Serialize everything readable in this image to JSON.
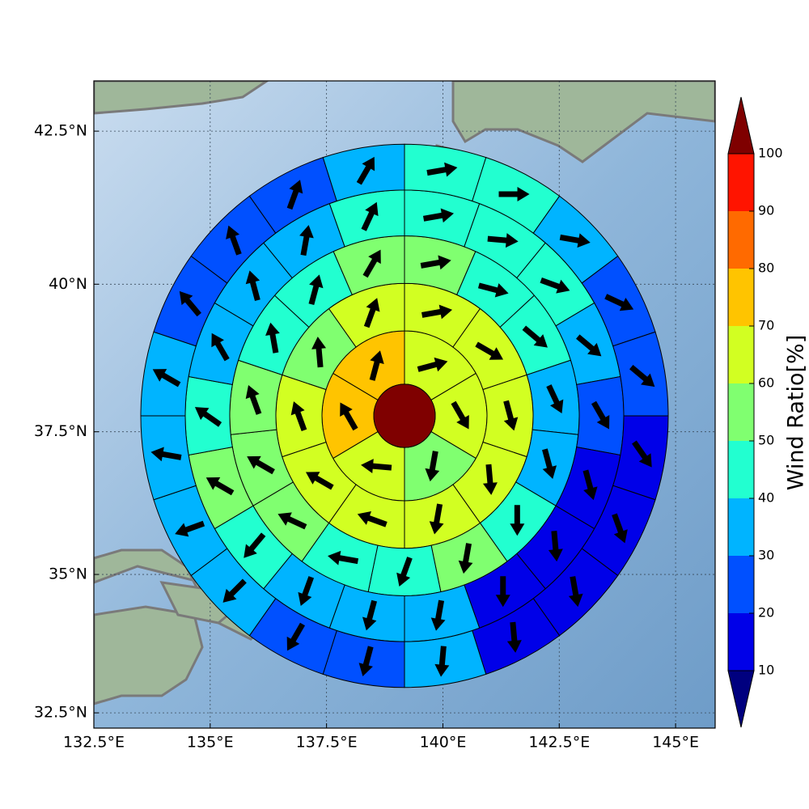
{
  "chart_data": {
    "type": "polar-sector-map",
    "projection": "mercator",
    "xlim": [
      132.5,
      145.85
    ],
    "ylim": [
      32.22,
      43.3
    ],
    "xticks": [
      {
        "value": 132.5,
        "label": "132.5°E"
      },
      {
        "value": 135,
        "label": "135°E"
      },
      {
        "value": 137.5,
        "label": "137.5°E"
      },
      {
        "value": 140,
        "label": "140°E"
      },
      {
        "value": 142.5,
        "label": "142.5°E"
      },
      {
        "value": 145,
        "label": "145°E"
      }
    ],
    "yticks": [
      {
        "value": 32.5,
        "label": "32.5°N"
      },
      {
        "value": 35,
        "label": "35°N"
      },
      {
        "value": 37.5,
        "label": "37.5°N"
      },
      {
        "value": 40,
        "label": "40°N"
      },
      {
        "value": 42.5,
        "label": "42.5°N"
      }
    ],
    "grid": true,
    "center_value": 105,
    "rings": [
      {
        "values": [
          65,
          65,
          55,
          65,
          75,
          75
        ],
        "directions": [
          75,
          150,
          190,
          275,
          330,
          15
        ]
      },
      {
        "values": [
          65,
          65,
          65,
          65,
          65,
          65,
          65,
          65,
          55,
          65
        ],
        "directions": [
          80,
          120,
          165,
          175,
          190,
          290,
          300,
          340,
          355,
          20
        ]
      },
      {
        "values": [
          55,
          45,
          45,
          35,
          35,
          45,
          55,
          45,
          45,
          55,
          55,
          55,
          45,
          45,
          55
        ],
        "directions": [
          80,
          105,
          130,
          155,
          165,
          180,
          190,
          200,
          280,
          295,
          300,
          340,
          350,
          15,
          30
        ]
      },
      {
        "values": [
          45,
          45,
          45,
          35,
          25,
          15,
          15,
          15,
          35,
          35,
          35,
          45,
          55,
          45,
          35,
          35,
          35,
          45
        ],
        "directions": [
          80,
          95,
          110,
          130,
          150,
          165,
          175,
          180,
          190,
          195,
          200,
          220,
          300,
          305,
          330,
          345,
          10,
          25
        ]
      },
      {
        "values": [
          45,
          45,
          35,
          25,
          25,
          15,
          15,
          15,
          15,
          35,
          25,
          25,
          35,
          35,
          35,
          35,
          25,
          25,
          25,
          35
        ],
        "directions": [
          80,
          90,
          100,
          115,
          130,
          145,
          160,
          170,
          175,
          185,
          195,
          210,
          225,
          250,
          280,
          300,
          320,
          340,
          20,
          30
        ]
      }
    ],
    "colorbar": {
      "label": "Wind Ratio[%]",
      "ticks": [
        10,
        20,
        30,
        40,
        50,
        60,
        70,
        80,
        90,
        100
      ],
      "colors": [
        "#0000e8",
        "#0050ff",
        "#00b4ff",
        "#22ffd0",
        "#80ff70",
        "#d2ff22",
        "#ffc400",
        "#ff6a00",
        "#ff1400"
      ],
      "under_color": "#00007f",
      "over_color": "#7f0000"
    }
  }
}
